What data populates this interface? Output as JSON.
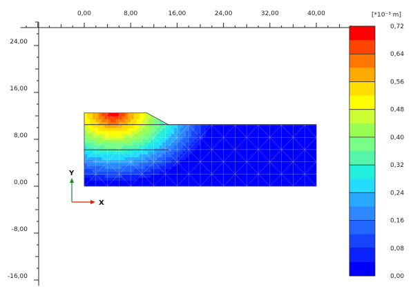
{
  "chart_data": {
    "type": "heatmap",
    "unit_label": "[*10⁻³ m]",
    "x_axis": {
      "range": [
        -11,
        47
      ],
      "ticks": [
        0,
        8,
        16,
        24,
        32,
        40
      ],
      "tick_labels": [
        "0,00",
        "8,00",
        "16,00",
        "24,00",
        "32,00",
        "40,00"
      ]
    },
    "y_axis": {
      "range": [
        -17,
        28
      ],
      "ticks": [
        24,
        16,
        8,
        0,
        -8,
        -16
      ],
      "tick_labels": [
        "24,00",
        "16,00",
        "8,00",
        "0,00",
        "-8,00",
        "-16,00"
      ]
    },
    "axis_indicator": {
      "x": "X",
      "y": "Y",
      "x_color": "#dd2200",
      "y_color": "#118833"
    },
    "geometry": {
      "outline": [
        [
          0,
          0
        ],
        [
          40,
          0
        ],
        [
          40,
          10.5
        ],
        [
          14.5,
          10.5
        ],
        [
          10.8,
          12.5
        ],
        [
          0,
          12.5
        ]
      ],
      "layer_lines": [
        [
          [
            0,
            10.5
          ],
          [
            40,
            10.5
          ]
        ],
        [
          [
            0,
            6.2
          ],
          [
            14.5,
            6.2
          ]
        ]
      ],
      "mesh_nx": 20,
      "mesh_ny": 6
    },
    "field": {
      "max": 0.72,
      "source": [
        5,
        12.5
      ],
      "radius_x": 18,
      "radius_y": 12.5,
      "shape": 1.1
    },
    "legend": {
      "min": 0,
      "max": 0.72,
      "step": 0.04,
      "labels": [
        "0,72",
        "0,64",
        "0,56",
        "0,48",
        "0,40",
        "0,32",
        "0,24",
        "0,16",
        "0,08",
        "0,00"
      ],
      "colors": [
        "#0000ff",
        "#0b22ff",
        "#1744ff",
        "#2266ff",
        "#2e88ff",
        "#2aaaff",
        "#22ddff",
        "#22f0dd",
        "#55f5aa",
        "#77ff88",
        "#99ff55",
        "#ccff33",
        "#ffff00",
        "#ffdd00",
        "#ffaa00",
        "#ff7700",
        "#ff4400",
        "#ff0000"
      ]
    }
  }
}
